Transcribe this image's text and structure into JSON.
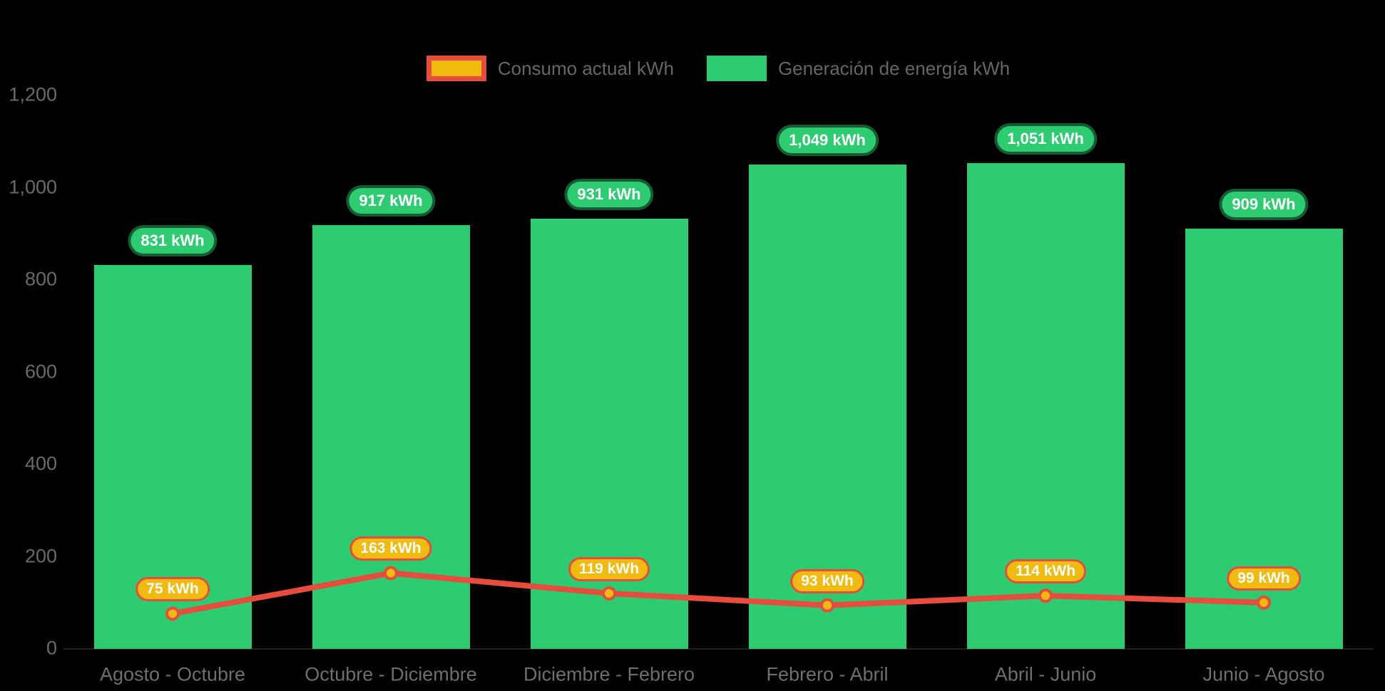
{
  "colors": {
    "background": "#000000",
    "bar_green": "#2ecc71",
    "line_red": "#e74c3c",
    "marker_yellow": "#f1ba0e",
    "badge_text": "#ffffff",
    "axis_text": "#6a6a6a",
    "legend_text": "#666666"
  },
  "chart_data": {
    "type": "bar",
    "title": "",
    "xlabel": "",
    "ylabel": "",
    "grid": false,
    "legend_position": "top",
    "ylim": [
      0,
      1200
    ],
    "yticks": [
      0,
      200,
      400,
      600,
      800,
      1000,
      1200
    ],
    "ytick_labels": [
      "0",
      "200",
      "400",
      "600",
      "800",
      "1,000",
      "1,200"
    ],
    "categories": [
      "Agosto - Octubre",
      "Octubre - Diciembre",
      "Diciembre - Febrero",
      "Febrero - Abril",
      "Abril - Junio",
      "Junio - Agosto"
    ],
    "series": [
      {
        "name": "Consumo actual kWh",
        "type": "line",
        "color": "#e74c3c",
        "marker_color": "#f1ba0e",
        "values": [
          75,
          163,
          119,
          93,
          114,
          99
        ],
        "labels": [
          "75 kWh",
          "163 kWh",
          "119 kWh",
          "93 kWh",
          "114 kWh",
          "99 kWh"
        ]
      },
      {
        "name": "Generación de energía kWh",
        "type": "bar",
        "color": "#2ecc71",
        "values": [
          831,
          917,
          931,
          1049,
          1051,
          909
        ],
        "labels": [
          "831 kWh",
          "917 kWh",
          "931 kWh",
          "1,049 kWh",
          "1,051 kWh",
          "909 kWh"
        ]
      }
    ]
  }
}
